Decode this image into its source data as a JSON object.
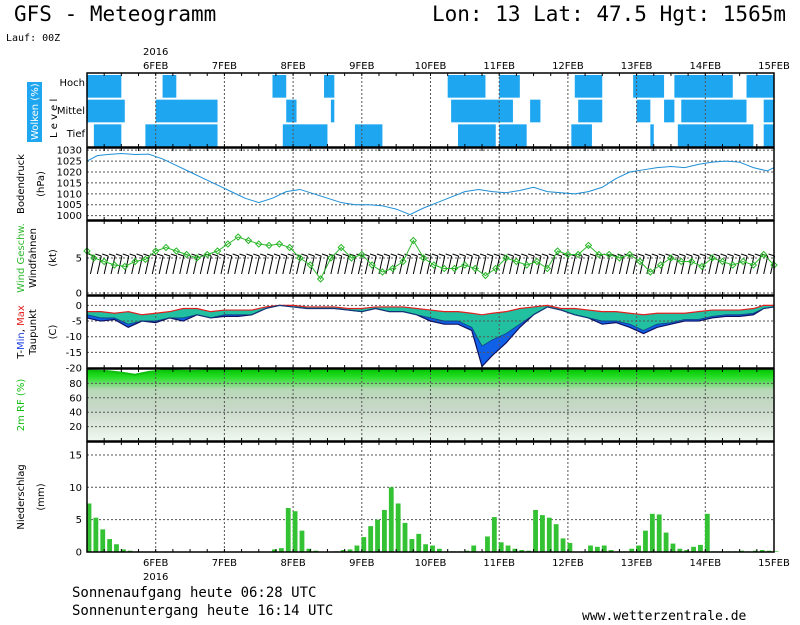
{
  "header": {
    "title": "GFS - Meteogramm",
    "coords": "Lon: 13 Lat: 47.5 Hgt: 1565m",
    "run": "Lauf: 00Z"
  },
  "footer": {
    "sunrise": "Sonnenaufgang heute 06:28 UTC",
    "sunset": "Sonnenuntergang heute 16:14 UTC",
    "source": "www.wetterzentrale.de"
  },
  "colors": {
    "cloud": "#1fa6f0",
    "pressure": "#1e8fd6",
    "wind": "#2db82d",
    "tmax": "#e02020",
    "tmin": "#2040e0",
    "dew": "#20c0a0",
    "rh": "#10c010",
    "precip": "#33c233"
  },
  "chart_data": [
    {
      "type": "heatmap",
      "id": "clouds",
      "ylabel": "Wolken (%)",
      "ylabel2": "Level",
      "levels": [
        "Hoch",
        "Mittel",
        "Tief"
      ],
      "x_labels": [
        "6FEB",
        "7FEB",
        "8FEB",
        "9FEB",
        "10FEB",
        "11FEB",
        "12FEB",
        "13FEB",
        "14FEB",
        "15FEB"
      ],
      "year": "2016",
      "x_unit": "day",
      "high": [
        [
          5.0,
          5.5
        ],
        [
          6.1,
          6.3
        ],
        [
          7.7,
          7.9
        ],
        [
          8.45,
          8.6
        ],
        [
          10.25,
          10.8
        ],
        [
          11.0,
          11.3
        ],
        [
          12.1,
          12.5
        ],
        [
          12.95,
          13.4
        ],
        [
          13.55,
          14.4
        ],
        [
          14.6,
          15.0
        ]
      ],
      "mid": [
        [
          5.0,
          5.55
        ],
        [
          6.0,
          6.9
        ],
        [
          7.9,
          8.05
        ],
        [
          8.55,
          8.6
        ],
        [
          10.3,
          11.2
        ],
        [
          11.45,
          11.6
        ],
        [
          12.15,
          12.5
        ],
        [
          13.0,
          13.2
        ],
        [
          13.4,
          13.55
        ],
        [
          13.65,
          14.6
        ],
        [
          14.85,
          15.0
        ]
      ],
      "low": [
        [
          5.1,
          5.5
        ],
        [
          5.85,
          6.9
        ],
        [
          7.85,
          8.5
        ],
        [
          8.9,
          9.3
        ],
        [
          10.4,
          10.95
        ],
        [
          11.0,
          11.4
        ],
        [
          12.05,
          12.35
        ],
        [
          13.2,
          13.25
        ],
        [
          13.6,
          14.7
        ],
        [
          14.85,
          15.0
        ]
      ]
    },
    {
      "type": "line",
      "id": "pressure",
      "ylabel": "Bodendruck",
      "unit": "(hPa)",
      "ylim": [
        998,
        1031
      ],
      "yticks": [
        1000,
        1005,
        1010,
        1015,
        1020,
        1025,
        1030
      ],
      "x": [
        5.0,
        5.15,
        5.3,
        5.5,
        5.7,
        5.9,
        6.1,
        6.3,
        6.5,
        6.7,
        6.9,
        7.1,
        7.3,
        7.5,
        7.7,
        7.9,
        8.1,
        8.3,
        8.5,
        8.7,
        8.9,
        9.1,
        9.3,
        9.5,
        9.7,
        9.9,
        10.1,
        10.3,
        10.5,
        10.7,
        10.9,
        11.1,
        11.3,
        11.5,
        11.7,
        11.9,
        12.1,
        12.3,
        12.5,
        12.7,
        12.9,
        13.1,
        13.3,
        13.5,
        13.7,
        13.9,
        14.1,
        14.3,
        14.5,
        14.7,
        14.9,
        15.0
      ],
      "values": [
        1025,
        1027.5,
        1028,
        1028.5,
        1028,
        1028.2,
        1026,
        1023,
        1020,
        1017,
        1014,
        1011,
        1008,
        1006,
        1008,
        1011,
        1012,
        1010,
        1008,
        1006,
        1005,
        1005,
        1004.5,
        1003,
        1000.5,
        1003.5,
        1006,
        1008.5,
        1011,
        1012,
        1011,
        1010.5,
        1011.5,
        1013,
        1011,
        1010.5,
        1010,
        1011,
        1013,
        1017,
        1020,
        1021,
        1022,
        1022.5,
        1022,
        1023.5,
        1024.5,
        1025,
        1024.5,
        1022,
        1020.5,
        1022
      ]
    },
    {
      "type": "line",
      "id": "wind",
      "ylabel": "Wind Geschw.",
      "ylabel2": "Windfahnen",
      "unit": "(kt)",
      "ylim": [
        0,
        10
      ],
      "yticks": [
        0,
        5
      ],
      "x": [
        5.0,
        5.1,
        5.25,
        5.4,
        5.55,
        5.7,
        5.85,
        6.0,
        6.15,
        6.3,
        6.45,
        6.6,
        6.75,
        6.9,
        7.05,
        7.2,
        7.35,
        7.5,
        7.65,
        7.8,
        7.95,
        8.1,
        8.25,
        8.4,
        8.55,
        8.7,
        8.85,
        9.0,
        9.15,
        9.3,
        9.45,
        9.6,
        9.75,
        9.9,
        10.05,
        10.2,
        10.35,
        10.5,
        10.65,
        10.8,
        10.95,
        11.1,
        11.25,
        11.4,
        11.55,
        11.7,
        11.85,
        12.0,
        12.15,
        12.3,
        12.45,
        12.6,
        12.75,
        12.9,
        13.05,
        13.2,
        13.35,
        13.5,
        13.65,
        13.8,
        13.95,
        14.1,
        14.25,
        14.4,
        14.55,
        14.7,
        14.85,
        15.0
      ],
      "values": [
        6,
        5,
        4.5,
        4,
        3.8,
        4.5,
        4.8,
        6,
        6.5,
        6,
        5.5,
        5,
        5.5,
        6,
        7,
        8,
        7.5,
        7,
        6.8,
        7,
        6.5,
        5,
        4,
        2,
        5,
        6.5,
        5,
        5.5,
        4,
        3,
        3.5,
        4.5,
        7.5,
        5,
        4,
        3.5,
        3.5,
        4,
        3.5,
        2.5,
        3.5,
        5,
        4.5,
        4,
        4.5,
        3.5,
        6,
        5.5,
        5.5,
        6.8,
        5.5,
        5.5,
        5,
        5.5,
        4.5,
        3,
        4,
        5,
        4.5,
        4.5,
        3.8,
        5,
        4.5,
        4,
        4.5,
        4,
        5.5,
        4
      ]
    },
    {
      "type": "area",
      "id": "temperature",
      "ylabel": "T-Min, Max",
      "ylabel2": "Taupunkt",
      "unit": "(C)",
      "ylim": [
        -20,
        3
      ],
      "yticks": [
        -20,
        -15,
        -10,
        -5,
        0
      ],
      "x": [
        5.0,
        5.2,
        5.4,
        5.6,
        5.8,
        6.0,
        6.2,
        6.4,
        6.6,
        6.8,
        7.0,
        7.2,
        7.4,
        7.6,
        7.8,
        8.0,
        8.2,
        8.4,
        8.6,
        8.8,
        9.0,
        9.2,
        9.4,
        9.6,
        9.8,
        10.0,
        10.2,
        10.4,
        10.6,
        10.75,
        10.9,
        11.1,
        11.3,
        11.5,
        11.7,
        11.9,
        12.1,
        12.3,
        12.5,
        12.7,
        12.9,
        13.1,
        13.3,
        13.5,
        13.7,
        13.9,
        14.1,
        14.3,
        14.5,
        14.7,
        14.85,
        15.0
      ],
      "series": [
        {
          "name": "T-Max",
          "values": [
            -2,
            -2,
            -2.5,
            -2,
            -3,
            -2.5,
            -2,
            -1,
            -1,
            -2,
            -1.5,
            -1.5,
            -1.5,
            -0.5,
            0,
            0,
            -0.5,
            -0.5,
            -0.5,
            -1,
            -1,
            -0.5,
            -0.5,
            -0.5,
            -1,
            -1.5,
            -2,
            -2,
            -2.5,
            -3,
            -2.5,
            -2,
            -1,
            -0.5,
            0,
            -1,
            -1,
            -1.5,
            -2,
            -2,
            -2.5,
            -3,
            -2.5,
            -2.5,
            -2.5,
            -2,
            -1.5,
            -1.5,
            -1.5,
            -1,
            0,
            0
          ]
        },
        {
          "name": "T-Min",
          "values": [
            -4,
            -5,
            -4.5,
            -7,
            -5,
            -5.5,
            -4,
            -5,
            -3,
            -4,
            -3.5,
            -3.5,
            -3,
            -1,
            0,
            -0.5,
            -1,
            -1,
            -1,
            -1.5,
            -2,
            -1,
            -2,
            -2,
            -3,
            -5,
            -6,
            -6,
            -8,
            -19.5,
            -16,
            -12,
            -7,
            -3,
            -0.5,
            -1.5,
            -3,
            -4,
            -6,
            -5.5,
            -7,
            -9,
            -7,
            -6,
            -5,
            -5,
            -4,
            -3.5,
            -3.5,
            -3,
            -1,
            -0.5
          ]
        },
        {
          "name": "Taupunkt",
          "values": [
            -3,
            -4,
            -4,
            -6,
            -5,
            -5,
            -4,
            -4,
            -3,
            -4,
            -3,
            -3,
            -3,
            -1,
            0,
            -0.5,
            -1,
            -1,
            -1,
            -1.5,
            -2,
            -1,
            -2,
            -2,
            -3,
            -4,
            -5,
            -5,
            -7,
            -13,
            -11,
            -9,
            -6,
            -3,
            -0.5,
            -1.5,
            -3,
            -4,
            -5,
            -5,
            -6,
            -8,
            -6,
            -5.5,
            -4.5,
            -4.5,
            -3.5,
            -3,
            -3,
            -2.5,
            -1,
            -0.5
          ]
        }
      ]
    },
    {
      "type": "area",
      "id": "humidity",
      "ylabel": "2m RF (%)",
      "ylim": [
        0,
        100
      ],
      "yticks": [
        20,
        40,
        60,
        80
      ],
      "x": [
        5.0,
        5.3,
        5.5,
        5.7,
        5.9,
        6.1,
        6.3,
        6.5,
        6.7,
        7.0,
        7.3,
        7.6,
        8.0,
        8.5,
        9.0,
        9.5,
        10.0,
        10.5,
        11.0,
        11.5,
        12.0,
        12.5,
        13.0,
        13.5,
        14.0,
        14.5,
        15.0
      ],
      "values": [
        98,
        97,
        95,
        92,
        96,
        98,
        98,
        97,
        98,
        98,
        99,
        98,
        98,
        99,
        99,
        99,
        99,
        99,
        99,
        99,
        99,
        99,
        99,
        99,
        99,
        99,
        99
      ]
    },
    {
      "type": "bar",
      "id": "precipitation",
      "ylabel": "Niederschlag",
      "unit": "(mm)",
      "ylim": [
        0,
        17
      ],
      "yticks": [
        0,
        5,
        10,
        15
      ],
      "x": [
        5.0,
        5.1,
        5.2,
        5.3,
        5.4,
        5.5,
        5.6,
        5.7,
        7.7,
        7.8,
        7.9,
        8.0,
        8.1,
        8.2,
        8.3,
        8.6,
        8.7,
        8.8,
        8.9,
        9.0,
        9.1,
        9.2,
        9.3,
        9.4,
        9.5,
        9.6,
        9.7,
        9.8,
        9.9,
        10.0,
        10.1,
        10.2,
        10.3,
        10.4,
        10.5,
        10.6,
        10.8,
        10.9,
        11.0,
        11.1,
        11.2,
        11.3,
        11.4,
        11.5,
        11.6,
        11.7,
        11.8,
        11.9,
        12.0,
        12.3,
        12.4,
        12.5,
        12.6,
        12.7,
        12.8,
        12.9,
        13.0,
        13.1,
        13.2,
        13.3,
        13.4,
        13.5,
        13.6,
        13.7,
        13.8,
        13.9,
        14.0,
        14.1,
        14.2,
        14.3,
        14.4,
        14.5,
        14.6,
        14.7,
        14.8,
        14.9,
        15.0
      ],
      "values": [
        7.5,
        5.3,
        3.5,
        2,
        1.2,
        0.4,
        0.2,
        0.1,
        0.4,
        0.6,
        6.8,
        6.3,
        3.3,
        0.5,
        0.2,
        0.1,
        0.3,
        0.4,
        1,
        2.3,
        4,
        5,
        6.5,
        10,
        7.5,
        4.5,
        2,
        2.8,
        1.2,
        1,
        0.5,
        0.1,
        0.1,
        0.1,
        0.2,
        1,
        2.4,
        5.4,
        1.5,
        1,
        0.5,
        0.3,
        0.2,
        6.5,
        5.7,
        5.3,
        4.3,
        2.1,
        1.4,
        1,
        0.8,
        1,
        0.3,
        0.1,
        0.1,
        0.5,
        1,
        3.3,
        5.9,
        5.8,
        3,
        1.3,
        0.5,
        0.3,
        0.8,
        1.1,
        5.9,
        0.1,
        0.1,
        0.1,
        0.1,
        0.2,
        0.1,
        0.2,
        0.3,
        0.2,
        0.1
      ]
    }
  ]
}
